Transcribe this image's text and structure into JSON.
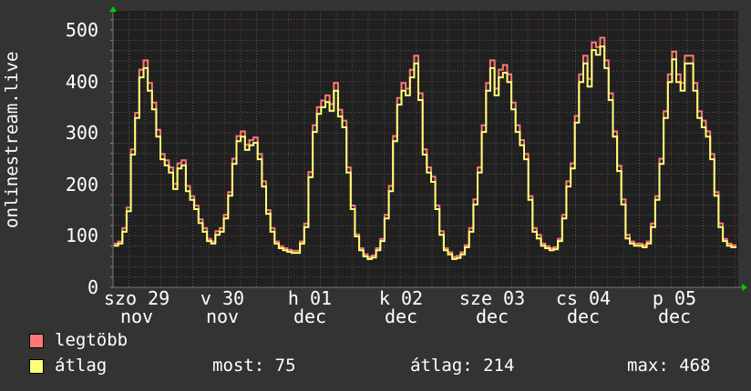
{
  "chart_data": {
    "type": "line",
    "ylabel": "onlinestream.live",
    "ylim": [
      0,
      500
    ],
    "yticks": [
      "0",
      "100",
      "200",
      "300",
      "400",
      "500"
    ],
    "xtick_labels": [
      "szo 29 nov",
      "v 30 nov",
      "h 01 dec",
      "k 02 dec",
      "sze 03 dec",
      "cs 04 dec",
      "p 05 dec"
    ],
    "grid": true,
    "colors": {
      "background": "#333333",
      "plot": "#202020",
      "max": "#ff7777",
      "avg": "#ffff77",
      "major_grid": "#7a3535",
      "minor_grid": "#555555"
    },
    "series": [
      {
        "name": "legtöbb",
        "values": [
          85,
          89,
          115,
          155,
          268,
          339,
          423,
          441,
          397,
          359,
          306,
          259,
          247,
          233,
          201,
          241,
          247,
          197,
          177,
          159,
          132,
          115,
          94,
          89,
          109,
          115,
          141,
          185,
          250,
          294,
          303,
          277,
          286,
          291,
          259,
          206,
          150,
          115,
          89,
          80,
          76,
          73,
          71,
          71,
          89,
          124,
          224,
          315,
          350,
          363,
          373,
          356,
          397,
          345,
          324,
          233,
          159,
          103,
          76,
          64,
          59,
          62,
          76,
          94,
          141,
          197,
          294,
          368,
          397,
          386,
          423,
          450,
          377,
          268,
          233,
          215,
          159,
          109,
          76,
          68,
          59,
          61,
          68,
          82,
          115,
          171,
          233,
          315,
          397,
          441,
          386,
          423,
          432,
          414,
          359,
          315,
          286,
          259,
          177,
          115,
          102,
          85,
          80,
          76,
          78,
          94,
          141,
          206,
          241,
          333,
          414,
          450,
          405,
          476,
          467,
          485,
          441,
          377,
          303,
          236,
          171,
          102,
          89,
          85,
          85,
          82,
          89,
          124,
          177,
          250,
          342,
          414,
          458,
          414,
          397,
          450,
          450,
          397,
          342,
          324,
          303,
          259,
          185,
          124,
          94,
          85,
          82,
          80
        ]
      },
      {
        "name": "átlag",
        "values": [
          81,
          85,
          108,
          148,
          258,
          329,
          408,
          426,
          382,
          346,
          293,
          249,
          237,
          223,
          191,
          231,
          237,
          187,
          170,
          152,
          125,
          108,
          90,
          85,
          102,
          108,
          134,
          178,
          240,
          284,
          293,
          267,
          276,
          281,
          249,
          196,
          143,
          108,
          85,
          76,
          72,
          69,
          67,
          67,
          85,
          117,
          214,
          302,
          337,
          350,
          360,
          343,
          382,
          332,
          311,
          223,
          152,
          99,
          72,
          60,
          55,
          58,
          72,
          90,
          134,
          187,
          284,
          355,
          382,
          373,
          408,
          435,
          364,
          258,
          223,
          205,
          152,
          102,
          72,
          64,
          55,
          57,
          64,
          78,
          108,
          161,
          223,
          302,
          382,
          426,
          373,
          408,
          417,
          399,
          346,
          302,
          276,
          249,
          170,
          108,
          95,
          81,
          76,
          72,
          74,
          90,
          134,
          196,
          231,
          320,
          399,
          435,
          390,
          461,
          452,
          468,
          426,
          364,
          293,
          226,
          161,
          95,
          85,
          81,
          81,
          78,
          85,
          117,
          170,
          240,
          329,
          399,
          443,
          399,
          382,
          435,
          435,
          382,
          329,
          311,
          293,
          249,
          178,
          117,
          90,
          81,
          78,
          76
        ]
      }
    ]
  },
  "legend": {
    "max_label": "legtöbb",
    "avg_label": "átlag",
    "now": "most: 75",
    "average": "átlag: 214",
    "max": "max: 468"
  }
}
